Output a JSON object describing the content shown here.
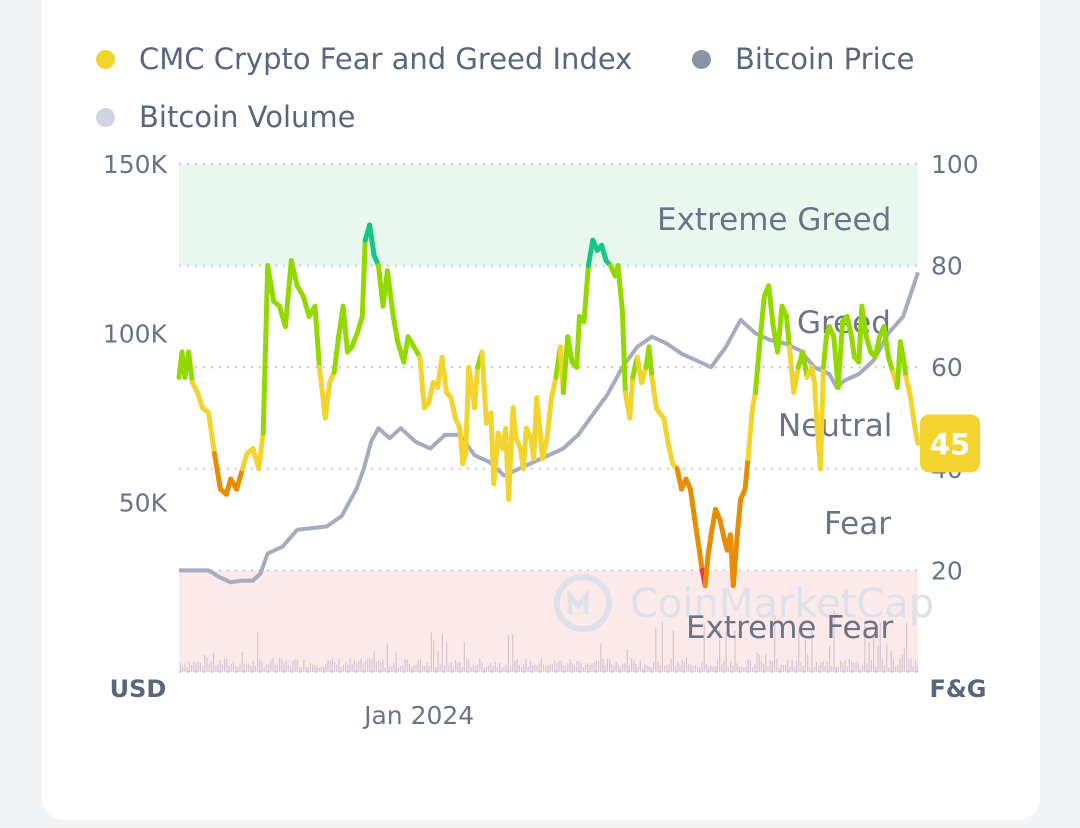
{
  "legend": {
    "fear_greed": {
      "label": "CMC Crypto Fear and Greed Index",
      "color": "#f3d42f"
    },
    "price": {
      "label": "Bitcoin Price",
      "color": "#8a93a6"
    },
    "volume": {
      "label": "Bitcoin Volume",
      "color": "#d0d5e2"
    }
  },
  "watermark": "CoinMarketCap",
  "chart_data": {
    "type": "line",
    "left_axis": {
      "unit": "USD",
      "ticks": [
        "150K",
        "100K",
        "50K"
      ],
      "tick_values": [
        150000,
        100000,
        50000
      ],
      "range": [
        0,
        150000
      ]
    },
    "right_axis": {
      "unit": "F&G",
      "ticks": [
        "100",
        "80",
        "60",
        "40",
        "20"
      ],
      "tick_values": [
        100,
        80,
        60,
        40,
        20
      ],
      "range": [
        0,
        100
      ]
    },
    "x_axis": {
      "ticks": [
        "Jan 2024"
      ],
      "tick_positions": [
        0.325
      ]
    },
    "grid": true,
    "legend_position": "top-left",
    "zones": [
      {
        "name": "Extreme Greed",
        "from": 80,
        "to": 100,
        "color": "#e8f8ef"
      },
      {
        "name": "Greed",
        "from": 60,
        "to": 80,
        "color": ""
      },
      {
        "name": "Neutral",
        "from": 40,
        "to": 60,
        "color": ""
      },
      {
        "name": "Fear",
        "from": 20,
        "to": 40,
        "color": ""
      },
      {
        "name": "Extreme Fear",
        "from": 0,
        "to": 20,
        "color": "#fce9ea"
      }
    ],
    "series": [
      {
        "name": "CMC Crypto Fear and Greed Index",
        "axis": "right",
        "color": "#f3d42f",
        "zone_colors": {
          "extreme_greed": "#16c784",
          "greed": "#93d900",
          "neutral": "#f3d42f",
          "fear": "#ea8c00",
          "extreme_fear": "#ea3943"
        },
        "points": [
          [
            0,
            58
          ],
          [
            0.004,
            63
          ],
          [
            0.008,
            58
          ],
          [
            0.013,
            63
          ],
          [
            0.018,
            57
          ],
          [
            0.025,
            55
          ],
          [
            0.032,
            52
          ],
          [
            0.04,
            51
          ],
          [
            0.048,
            43
          ],
          [
            0.056,
            36
          ],
          [
            0.064,
            35
          ],
          [
            0.07,
            38
          ],
          [
            0.078,
            36
          ],
          [
            0.086,
            40
          ],
          [
            0.092,
            43
          ],
          [
            0.1,
            44
          ],
          [
            0.108,
            40
          ],
          [
            0.114,
            47
          ],
          [
            0.12,
            80
          ],
          [
            0.128,
            73
          ],
          [
            0.136,
            72
          ],
          [
            0.144,
            68
          ],
          [
            0.152,
            81
          ],
          [
            0.16,
            76
          ],
          [
            0.168,
            74
          ],
          [
            0.176,
            70
          ],
          [
            0.184,
            72
          ],
          [
            0.19,
            60
          ],
          [
            0.194,
            55
          ],
          [
            0.198,
            50
          ],
          [
            0.204,
            57
          ],
          [
            0.21,
            59
          ],
          [
            0.216,
            66
          ],
          [
            0.222,
            72
          ],
          [
            0.228,
            63
          ],
          [
            0.234,
            64
          ],
          [
            0.242,
            67
          ],
          [
            0.248,
            70
          ],
          [
            0.252,
            85
          ],
          [
            0.258,
            88
          ],
          [
            0.264,
            82
          ],
          [
            0.27,
            80
          ],
          [
            0.276,
            72
          ],
          [
            0.282,
            79
          ],
          [
            0.29,
            70
          ],
          [
            0.296,
            65
          ],
          [
            0.304,
            61
          ],
          [
            0.31,
            66
          ],
          [
            0.318,
            64
          ],
          [
            0.326,
            62
          ],
          [
            0.332,
            52
          ],
          [
            0.338,
            53
          ],
          [
            0.344,
            57
          ],
          [
            0.35,
            56
          ],
          [
            0.356,
            62
          ],
          [
            0.362,
            55
          ],
          [
            0.368,
            54
          ],
          [
            0.374,
            50
          ],
          [
            0.38,
            48
          ],
          [
            0.384,
            41
          ],
          [
            0.388,
            43
          ],
          [
            0.392,
            60
          ],
          [
            0.396,
            56
          ],
          [
            0.4,
            52
          ],
          [
            0.404,
            60
          ],
          [
            0.41,
            63
          ],
          [
            0.416,
            49
          ],
          [
            0.422,
            51
          ],
          [
            0.426,
            37
          ],
          [
            0.432,
            47
          ],
          [
            0.438,
            44
          ],
          [
            0.442,
            48
          ],
          [
            0.446,
            34
          ],
          [
            0.452,
            52
          ],
          [
            0.456,
            46
          ],
          [
            0.462,
            44
          ],
          [
            0.466,
            40
          ],
          [
            0.47,
            48
          ],
          [
            0.476,
            46
          ],
          [
            0.48,
            42
          ],
          [
            0.484,
            54
          ],
          [
            0.492,
            42
          ],
          [
            0.498,
            46
          ],
          [
            0.504,
            54
          ],
          [
            0.51,
            58
          ],
          [
            0.516,
            64
          ],
          [
            0.52,
            55
          ],
          [
            0.526,
            66
          ],
          [
            0.532,
            61
          ],
          [
            0.538,
            60
          ],
          [
            0.542,
            70
          ],
          [
            0.548,
            69
          ],
          [
            0.554,
            80
          ],
          [
            0.56,
            85
          ],
          [
            0.566,
            83
          ],
          [
            0.572,
            84
          ],
          [
            0.578,
            81
          ],
          [
            0.584,
            80
          ],
          [
            0.59,
            78
          ],
          [
            0.594,
            80
          ],
          [
            0.598,
            74
          ],
          [
            0.6,
            71
          ],
          [
            0.604,
            55
          ],
          [
            0.61,
            50
          ],
          [
            0.614,
            58
          ],
          [
            0.62,
            62
          ],
          [
            0.626,
            57
          ],
          [
            0.632,
            60
          ],
          [
            0.636,
            64
          ],
          [
            0.64,
            58
          ],
          [
            0.646,
            52
          ],
          [
            0.65,
            51
          ],
          [
            0.656,
            50
          ],
          [
            0.662,
            45
          ],
          [
            0.668,
            41
          ],
          [
            0.674,
            40
          ],
          [
            0.68,
            36
          ],
          [
            0.686,
            38
          ],
          [
            0.692,
            36
          ],
          [
            0.698,
            30
          ],
          [
            0.704,
            24
          ],
          [
            0.708,
            20
          ],
          [
            0.712,
            17
          ],
          [
            0.716,
            23
          ],
          [
            0.72,
            27
          ],
          [
            0.726,
            32
          ],
          [
            0.732,
            30
          ],
          [
            0.738,
            26
          ],
          [
            0.742,
            24
          ],
          [
            0.746,
            27
          ],
          [
            0.75,
            17
          ],
          [
            0.756,
            28
          ],
          [
            0.76,
            34
          ],
          [
            0.766,
            36
          ],
          [
            0.77,
            42
          ],
          [
            0.776,
            52
          ],
          [
            0.78,
            55
          ],
          [
            0.786,
            65
          ],
          [
            0.792,
            74
          ],
          [
            0.798,
            76
          ],
          [
            0.804,
            68
          ],
          [
            0.81,
            63
          ],
          [
            0.816,
            72
          ],
          [
            0.822,
            70
          ],
          [
            0.826,
            64
          ],
          [
            0.832,
            55
          ],
          [
            0.838,
            60
          ],
          [
            0.844,
            63
          ],
          [
            0.85,
            58
          ],
          [
            0.856,
            60
          ],
          [
            0.86,
            57
          ],
          [
            0.864,
            47
          ],
          [
            0.868,
            40
          ],
          [
            0.872,
            60
          ],
          [
            0.876,
            66
          ],
          [
            0.88,
            68
          ],
          [
            0.886,
            66
          ],
          [
            0.892,
            56
          ],
          [
            0.898,
            69
          ],
          [
            0.904,
            70
          ],
          [
            0.91,
            66
          ],
          [
            0.914,
            62
          ],
          [
            0.92,
            61
          ],
          [
            0.924,
            72
          ],
          [
            0.93,
            66
          ],
          [
            0.936,
            63
          ],
          [
            0.942,
            62
          ],
          [
            0.948,
            66
          ],
          [
            0.954,
            68
          ],
          [
            0.96,
            62
          ],
          [
            0.966,
            59
          ],
          [
            0.972,
            56
          ],
          [
            0.976,
            65
          ],
          [
            0.98,
            62
          ],
          [
            0.984,
            58
          ],
          [
            0.99,
            54
          ],
          [
            0.996,
            48
          ],
          [
            1.0,
            45
          ]
        ]
      },
      {
        "name": "Bitcoin Price",
        "axis": "left",
        "color": "#a5acbd",
        "points": [
          [
            0,
            30000
          ],
          [
            0.02,
            30000
          ],
          [
            0.04,
            30000
          ],
          [
            0.055,
            28000
          ],
          [
            0.07,
            26500
          ],
          [
            0.085,
            27000
          ],
          [
            0.1,
            27000
          ],
          [
            0.11,
            29000
          ],
          [
            0.12,
            35000
          ],
          [
            0.13,
            36000
          ],
          [
            0.14,
            37000
          ],
          [
            0.16,
            42000
          ],
          [
            0.18,
            42500
          ],
          [
            0.2,
            43000
          ],
          [
            0.22,
            46000
          ],
          [
            0.24,
            54000
          ],
          [
            0.25,
            60000
          ],
          [
            0.26,
            68000
          ],
          [
            0.27,
            72000
          ],
          [
            0.285,
            69000
          ],
          [
            0.3,
            72000
          ],
          [
            0.32,
            68000
          ],
          [
            0.34,
            66000
          ],
          [
            0.36,
            70000
          ],
          [
            0.38,
            70000
          ],
          [
            0.4,
            64000
          ],
          [
            0.42,
            62000
          ],
          [
            0.44,
            58000
          ],
          [
            0.46,
            60000
          ],
          [
            0.48,
            62000
          ],
          [
            0.5,
            64000
          ],
          [
            0.52,
            66000
          ],
          [
            0.54,
            70000
          ],
          [
            0.56,
            76000
          ],
          [
            0.58,
            82000
          ],
          [
            0.6,
            90000
          ],
          [
            0.62,
            96000
          ],
          [
            0.64,
            99000
          ],
          [
            0.66,
            97000
          ],
          [
            0.68,
            94000
          ],
          [
            0.7,
            92000
          ],
          [
            0.72,
            90000
          ],
          [
            0.74,
            96000
          ],
          [
            0.76,
            104000
          ],
          [
            0.78,
            100000
          ],
          [
            0.8,
            98000
          ],
          [
            0.82,
            97000
          ],
          [
            0.84,
            95000
          ],
          [
            0.86,
            90000
          ],
          [
            0.88,
            88000
          ],
          [
            0.89,
            84000
          ],
          [
            0.9,
            86000
          ],
          [
            0.92,
            88000
          ],
          [
            0.94,
            92000
          ],
          [
            0.96,
            100000
          ],
          [
            0.98,
            105000
          ],
          [
            1.0,
            118000
          ]
        ]
      },
      {
        "name": "Bitcoin Volume",
        "axis": "left",
        "color": "#d0d5e2",
        "range_note": "bars along the bottom of the chart"
      }
    ],
    "current_value": {
      "value": "45",
      "color": "#f3d42f"
    }
  }
}
